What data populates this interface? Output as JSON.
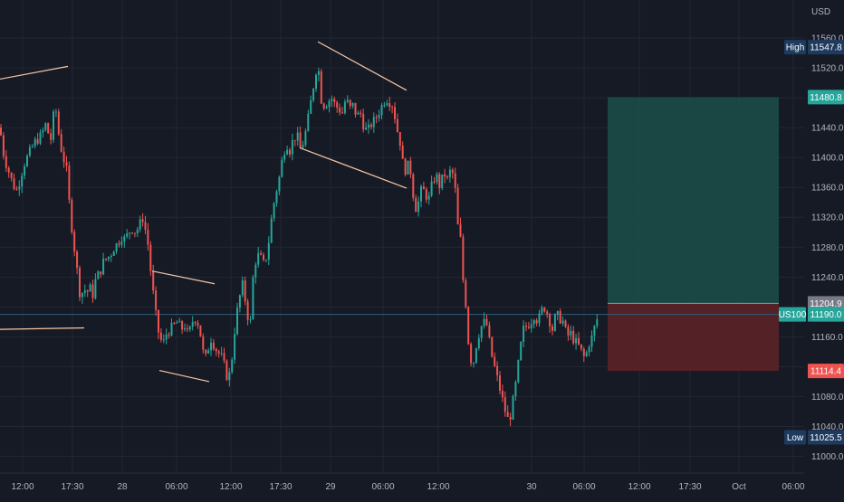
{
  "colors": {
    "background": "#161a25",
    "grid": "#232734",
    "axis_text": "#b2b5be",
    "up": "#26a69a",
    "down": "#ef5350",
    "trendline": "#f5c6a5",
    "target_zone": "#1b4f4a",
    "stop_zone": "#5b2228",
    "label_bg": "#1e3a5f",
    "gray_label": "#787b86"
  },
  "chart_data": {
    "type": "candlestick",
    "symbol": "US100",
    "currency": "USD",
    "ylim": [
      10980,
      11580
    ],
    "y_ticks": [
      "11560.0",
      "11520.0",
      "11480.0",
      "11440.0",
      "11400.0",
      "11360.0",
      "11320.0",
      "11280.0",
      "11240.0",
      "11200.0",
      "11160.0",
      "11120.0",
      "11080.0",
      "11040.0",
      "11000.0"
    ],
    "x_ticks": [
      "12:00",
      "17:30",
      "28",
      "06:00",
      "12:00",
      "17:30",
      "29",
      "06:00",
      "12:00",
      "30",
      "06:00",
      "12:00",
      "17:30",
      "Oct",
      "06:00"
    ],
    "price_labels": {
      "high": {
        "label": "High",
        "value": "11547.8"
      },
      "target": {
        "value": "11480.8"
      },
      "entry": {
        "value": "11204.9"
      },
      "current": {
        "label": "US100",
        "value": "11190.0"
      },
      "stop": {
        "value": "11114.4"
      },
      "low": {
        "label": "Low",
        "value": "11025.5"
      }
    },
    "position": {
      "type": "long",
      "entry": 11204.9,
      "target": 11480.8,
      "stop": 11114.4
    },
    "close_path": [
      [
        0,
        11440
      ],
      [
        3,
        11410
      ],
      [
        6,
        11395
      ],
      [
        10,
        11380
      ],
      [
        14,
        11365
      ],
      [
        18,
        11355
      ],
      [
        22,
        11370
      ],
      [
        26,
        11390
      ],
      [
        30,
        11400
      ],
      [
        34,
        11410
      ],
      [
        38,
        11420
      ],
      [
        42,
        11425
      ],
      [
        46,
        11430
      ],
      [
        50,
        11445
      ],
      [
        54,
        11430
      ],
      [
        58,
        11420
      ],
      [
        60,
        11490
      ],
      [
        62,
        11460
      ],
      [
        66,
        11420
      ],
      [
        70,
        11400
      ],
      [
        74,
        11380
      ],
      [
        77,
        11330
      ],
      [
        80,
        11300
      ],
      [
        83,
        11270
      ],
      [
        86,
        11240
      ],
      [
        89,
        11210
      ],
      [
        92,
        11225
      ],
      [
        96,
        11220
      ],
      [
        100,
        11225
      ],
      [
        103,
        11215
      ],
      [
        106,
        11240
      ],
      [
        110,
        11245
      ],
      [
        114,
        11260
      ],
      [
        118,
        11265
      ],
      [
        122,
        11270
      ],
      [
        126,
        11280
      ],
      [
        130,
        11285
      ],
      [
        134,
        11295
      ],
      [
        138,
        11290
      ],
      [
        142,
        11300
      ],
      [
        146,
        11305
      ],
      [
        150,
        11300
      ],
      [
        154,
        11310
      ],
      [
        158,
        11320
      ],
      [
        161,
        11300
      ],
      [
        164,
        11280
      ],
      [
        167,
        11240
      ],
      [
        170,
        11210
      ],
      [
        173,
        11180
      ],
      [
        176,
        11160
      ],
      [
        180,
        11150
      ],
      [
        184,
        11165
      ],
      [
        188,
        11170
      ],
      [
        192,
        11175
      ],
      [
        196,
        11180
      ],
      [
        200,
        11170
      ],
      [
        204,
        11175
      ],
      [
        208,
        11160
      ],
      [
        212,
        11180
      ],
      [
        216,
        11185
      ],
      [
        220,
        11175
      ],
      [
        224,
        11140
      ],
      [
        228,
        11130
      ],
      [
        232,
        11160
      ],
      [
        236,
        11150
      ],
      [
        240,
        11140
      ],
      [
        244,
        11135
      ],
      [
        248,
        11120
      ],
      [
        252,
        11100
      ],
      [
        256,
        11130
      ],
      [
        260,
        11180
      ],
      [
        264,
        11210
      ],
      [
        268,
        11230
      ],
      [
        272,
        11200
      ],
      [
        276,
        11170
      ],
      [
        280,
        11250
      ],
      [
        284,
        11270
      ],
      [
        288,
        11265
      ],
      [
        292,
        11255
      ],
      [
        296,
        11280
      ],
      [
        300,
        11320
      ],
      [
        304,
        11350
      ],
      [
        308,
        11370
      ],
      [
        312,
        11400
      ],
      [
        316,
        11420
      ],
      [
        320,
        11410
      ],
      [
        324,
        11425
      ],
      [
        328,
        11430
      ],
      [
        332,
        11410
      ],
      [
        336,
        11425
      ],
      [
        340,
        11450
      ],
      [
        344,
        11480
      ],
      [
        348,
        11510
      ],
      [
        351,
        11530
      ],
      [
        354,
        11480
      ],
      [
        358,
        11470
      ],
      [
        362,
        11475
      ],
      [
        366,
        11480
      ],
      [
        370,
        11470
      ],
      [
        374,
        11465
      ],
      [
        378,
        11460
      ],
      [
        382,
        11480
      ],
      [
        386,
        11465
      ],
      [
        390,
        11470
      ],
      [
        394,
        11455
      ],
      [
        398,
        11460
      ],
      [
        402,
        11440
      ],
      [
        406,
        11435
      ],
      [
        410,
        11445
      ],
      [
        414,
        11450
      ],
      [
        418,
        11460
      ],
      [
        422,
        11470
      ],
      [
        426,
        11480
      ],
      [
        430,
        11475
      ],
      [
        434,
        11470
      ],
      [
        438,
        11440
      ],
      [
        442,
        11420
      ],
      [
        446,
        11380
      ],
      [
        450,
        11390
      ],
      [
        454,
        11380
      ],
      [
        458,
        11330
      ],
      [
        462,
        11340
      ],
      [
        466,
        11360
      ],
      [
        470,
        11350
      ],
      [
        474,
        11345
      ],
      [
        478,
        11370
      ],
      [
        482,
        11375
      ],
      [
        486,
        11360
      ],
      [
        490,
        11380
      ],
      [
        494,
        11370
      ],
      [
        498,
        11385
      ],
      [
        502,
        11370
      ],
      [
        505,
        11310
      ],
      [
        508,
        11300
      ],
      [
        511,
        11240
      ],
      [
        514,
        11210
      ],
      [
        518,
        11140
      ],
      [
        522,
        11120
      ],
      [
        526,
        11150
      ],
      [
        530,
        11170
      ],
      [
        534,
        11180
      ],
      [
        538,
        11175
      ],
      [
        542,
        11140
      ],
      [
        546,
        11120
      ],
      [
        550,
        11100
      ],
      [
        554,
        11080
      ],
      [
        558,
        11060
      ],
      [
        562,
        11045
      ],
      [
        566,
        11070
      ],
      [
        570,
        11100
      ],
      [
        574,
        11140
      ],
      [
        578,
        11170
      ],
      [
        582,
        11175
      ],
      [
        586,
        11180
      ],
      [
        590,
        11190
      ],
      [
        594,
        11180
      ],
      [
        598,
        11195
      ],
      [
        602,
        11200
      ],
      [
        606,
        11185
      ],
      [
        610,
        11170
      ],
      [
        614,
        11190
      ],
      [
        618,
        11185
      ],
      [
        622,
        11180
      ],
      [
        626,
        11160
      ],
      [
        630,
        11165
      ],
      [
        634,
        11155
      ],
      [
        638,
        11150
      ],
      [
        642,
        11140
      ],
      [
        646,
        11130
      ],
      [
        650,
        11150
      ],
      [
        654,
        11160
      ],
      [
        658,
        11180
      ],
      [
        662,
        11190
      ]
    ],
    "trendlines": [
      {
        "from": [
          0,
          11505
        ],
        "to": [
          75,
          11522
        ]
      },
      {
        "from": [
          0,
          11170
        ],
        "to": [
          93,
          11172
        ]
      },
      {
        "from": [
          168,
          11248
        ],
        "to": [
          237,
          11231
        ]
      },
      {
        "from": [
          176,
          11115
        ],
        "to": [
          231,
          11100
        ]
      },
      {
        "from": [
          351,
          11555
        ],
        "to": [
          449,
          11490
        ]
      },
      {
        "from": [
          331,
          11413
        ],
        "to": [
          449,
          11359
        ]
      }
    ]
  }
}
